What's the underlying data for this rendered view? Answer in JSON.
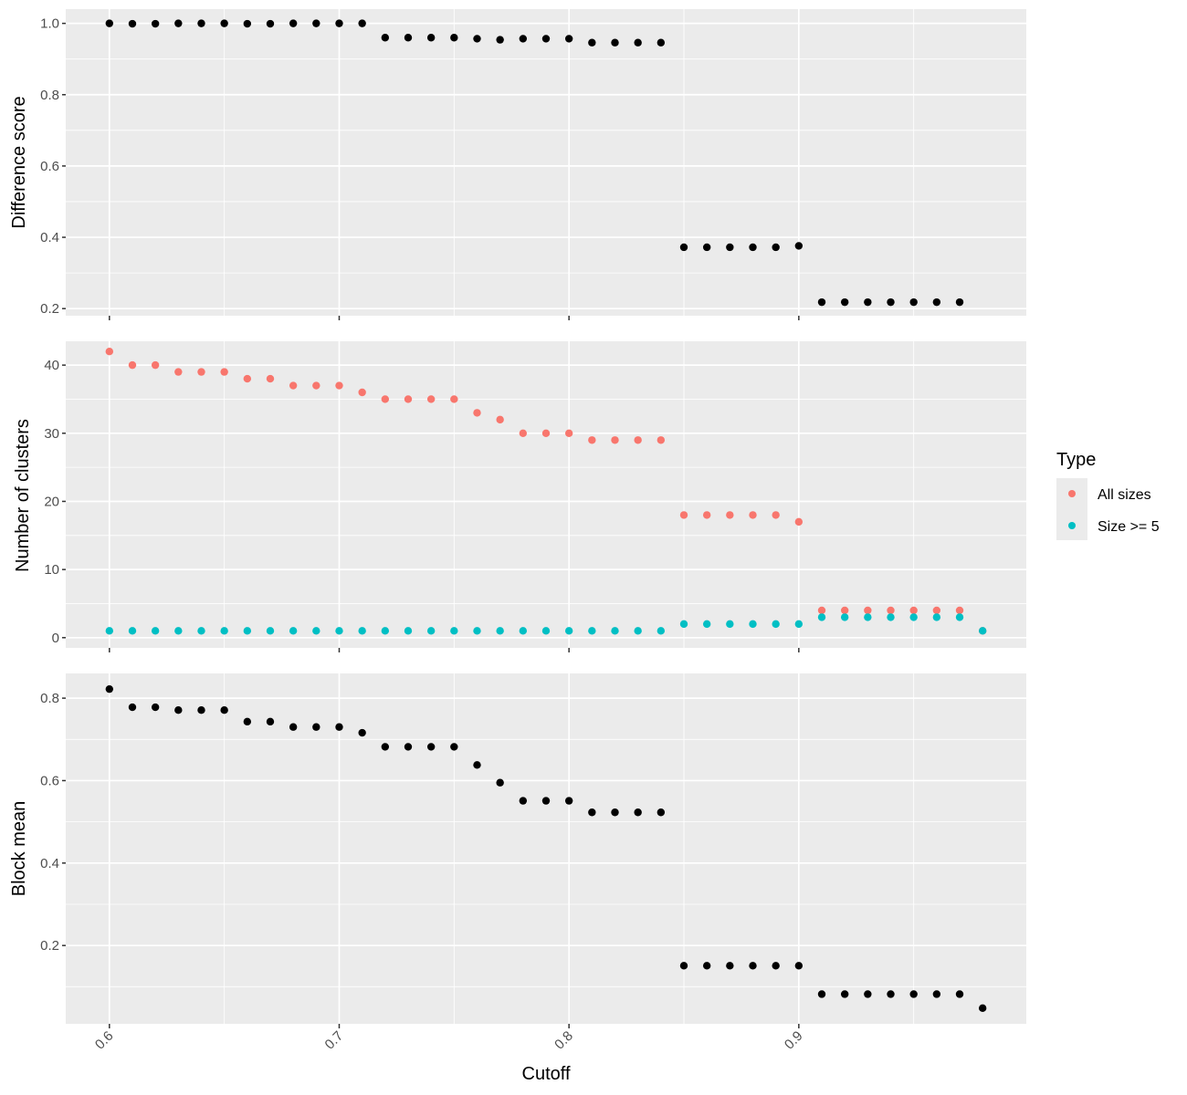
{
  "chart_data": [
    {
      "type": "scatter",
      "ylabel": "Difference score",
      "xlim": [
        0.581,
        0.999
      ],
      "ylim": [
        0.18,
        1.04
      ],
      "yticks": [
        {
          "value": 0.2,
          "label": "0.2"
        },
        {
          "value": 0.4,
          "label": "0.4"
        },
        {
          "value": 0.6,
          "label": "0.6"
        },
        {
          "value": 0.8,
          "label": "0.8"
        },
        {
          "value": 1.0,
          "label": "1.0"
        }
      ],
      "yminor": [
        0.3,
        0.5,
        0.7,
        0.9
      ],
      "grid": true,
      "series": [
        {
          "color": "#000000",
          "x": [
            0.6,
            0.61,
            0.62,
            0.63,
            0.64,
            0.65,
            0.66,
            0.67,
            0.68,
            0.69,
            0.7,
            0.71,
            0.72,
            0.73,
            0.74,
            0.75,
            0.76,
            0.77,
            0.78,
            0.79,
            0.8,
            0.81,
            0.82,
            0.83,
            0.84,
            0.85,
            0.86,
            0.87,
            0.88,
            0.89,
            0.9,
            0.91,
            0.92,
            0.93,
            0.94,
            0.95,
            0.96,
            0.97
          ],
          "y": [
            1.0,
            0.999,
            0.999,
            1.0,
            1.0,
            1.0,
            0.999,
            0.999,
            1.0,
            1.0,
            1.0,
            1.0,
            0.96,
            0.96,
            0.96,
            0.96,
            0.957,
            0.954,
            0.957,
            0.957,
            0.957,
            0.946,
            0.946,
            0.946,
            0.946,
            0.372,
            0.372,
            0.372,
            0.372,
            0.372,
            0.376,
            0.218,
            0.218,
            0.218,
            0.218,
            0.218,
            0.218,
            0.218
          ]
        }
      ]
    },
    {
      "type": "scatter",
      "ylabel": "Number of clusters",
      "xlim": [
        0.581,
        0.999
      ],
      "ylim": [
        -1.5,
        43.5
      ],
      "yticks": [
        {
          "value": 0,
          "label": "0"
        },
        {
          "value": 10,
          "label": "10"
        },
        {
          "value": 20,
          "label": "20"
        },
        {
          "value": 30,
          "label": "30"
        },
        {
          "value": 40,
          "label": "40"
        }
      ],
      "yminor": [
        5,
        15,
        25,
        35
      ],
      "grid": true,
      "legend": {
        "title": "Type",
        "placement": "right",
        "entries": [
          "All sizes",
          "Size >= 5"
        ]
      },
      "series": [
        {
          "name": "All sizes",
          "color": "#F8766D",
          "x": [
            0.6,
            0.61,
            0.62,
            0.63,
            0.64,
            0.65,
            0.66,
            0.67,
            0.68,
            0.69,
            0.7,
            0.71,
            0.72,
            0.73,
            0.74,
            0.75,
            0.76,
            0.77,
            0.78,
            0.79,
            0.8,
            0.81,
            0.82,
            0.83,
            0.84,
            0.85,
            0.86,
            0.87,
            0.88,
            0.89,
            0.9,
            0.91,
            0.92,
            0.93,
            0.94,
            0.95,
            0.96,
            0.97,
            0.98
          ],
          "y": [
            42,
            40,
            40,
            39,
            39,
            39,
            38,
            38,
            37,
            37,
            37,
            36,
            35,
            35,
            35,
            35,
            33,
            32,
            30,
            30,
            30,
            29,
            29,
            29,
            29,
            18,
            18,
            18,
            18,
            18,
            17,
            4,
            4,
            4,
            4,
            4,
            4,
            4,
            1
          ]
        },
        {
          "name": "Size >= 5",
          "color": "#00BFC4",
          "x": [
            0.6,
            0.61,
            0.62,
            0.63,
            0.64,
            0.65,
            0.66,
            0.67,
            0.68,
            0.69,
            0.7,
            0.71,
            0.72,
            0.73,
            0.74,
            0.75,
            0.76,
            0.77,
            0.78,
            0.79,
            0.8,
            0.81,
            0.82,
            0.83,
            0.84,
            0.85,
            0.86,
            0.87,
            0.88,
            0.89,
            0.9,
            0.91,
            0.92,
            0.93,
            0.94,
            0.95,
            0.96,
            0.97,
            0.98
          ],
          "y": [
            1,
            1,
            1,
            1,
            1,
            1,
            1,
            1,
            1,
            1,
            1,
            1,
            1,
            1,
            1,
            1,
            1,
            1,
            1,
            1,
            1,
            1,
            1,
            1,
            1,
            2,
            2,
            2,
            2,
            2,
            2,
            3,
            3,
            3,
            3,
            3,
            3,
            3,
            1
          ]
        }
      ]
    },
    {
      "type": "scatter",
      "ylabel": "Block mean",
      "xlabel": "Cutoff",
      "xlim": [
        0.581,
        0.999
      ],
      "ylim": [
        0.01,
        0.86
      ],
      "xticks": [
        {
          "value": 0.6,
          "label": "0.6"
        },
        {
          "value": 0.7,
          "label": "0.7"
        },
        {
          "value": 0.8,
          "label": "0.8"
        },
        {
          "value": 0.9,
          "label": "0.9"
        }
      ],
      "xminor": [
        0.65,
        0.75,
        0.85,
        0.95
      ],
      "yticks": [
        {
          "value": 0.2,
          "label": "0.2"
        },
        {
          "value": 0.4,
          "label": "0.4"
        },
        {
          "value": 0.6,
          "label": "0.6"
        },
        {
          "value": 0.8,
          "label": "0.8"
        }
      ],
      "yminor": [
        0.1,
        0.3,
        0.5,
        0.7
      ],
      "grid": true,
      "series": [
        {
          "color": "#000000",
          "x": [
            0.6,
            0.61,
            0.62,
            0.63,
            0.64,
            0.65,
            0.66,
            0.67,
            0.68,
            0.69,
            0.7,
            0.71,
            0.72,
            0.73,
            0.74,
            0.75,
            0.76,
            0.77,
            0.78,
            0.79,
            0.8,
            0.81,
            0.82,
            0.83,
            0.84,
            0.85,
            0.86,
            0.87,
            0.88,
            0.89,
            0.9,
            0.91,
            0.92,
            0.93,
            0.94,
            0.95,
            0.96,
            0.97,
            0.98
          ],
          "y": [
            0.822,
            0.778,
            0.778,
            0.771,
            0.771,
            0.771,
            0.743,
            0.743,
            0.73,
            0.73,
            0.73,
            0.716,
            0.682,
            0.682,
            0.682,
            0.682,
            0.638,
            0.595,
            0.551,
            0.551,
            0.551,
            0.523,
            0.523,
            0.523,
            0.523,
            0.151,
            0.151,
            0.151,
            0.151,
            0.151,
            0.151,
            0.082,
            0.082,
            0.082,
            0.082,
            0.082,
            0.082,
            0.082,
            0.048
          ]
        }
      ]
    }
  ]
}
